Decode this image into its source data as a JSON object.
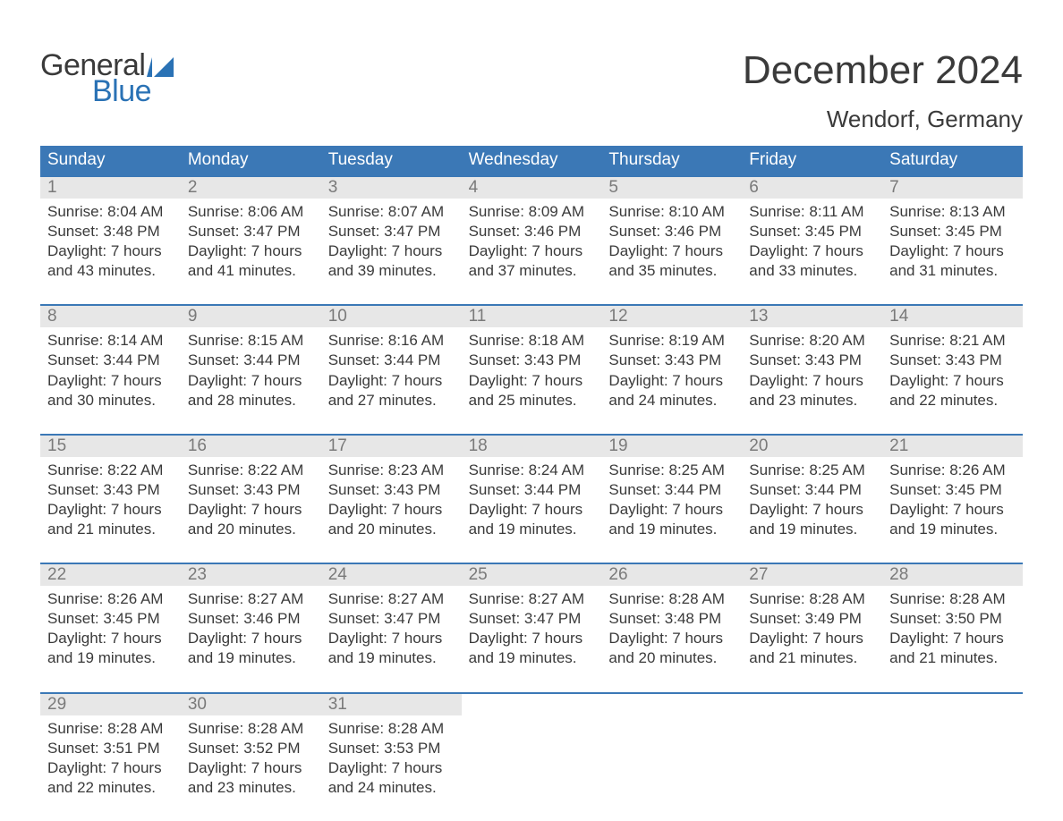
{
  "brand": {
    "word1": "General",
    "word2": "Blue",
    "accent_color": "#2a72b5"
  },
  "title": "December 2024",
  "location": "Wendorf, Germany",
  "colors": {
    "header_bg": "#3b78b6",
    "header_text": "#ffffff",
    "daynum_bg": "#e7e7e7",
    "daynum_text": "#7a7a7a",
    "body_text": "#3a3a3a",
    "week_border": "#3b78b6",
    "page_bg": "#ffffff"
  },
  "days_of_week": [
    "Sunday",
    "Monday",
    "Tuesday",
    "Wednesday",
    "Thursday",
    "Friday",
    "Saturday"
  ],
  "weeks": [
    [
      {
        "n": "1",
        "sunrise": "Sunrise: 8:04 AM",
        "sunset": "Sunset: 3:48 PM",
        "d1": "Daylight: 7 hours",
        "d2": "and 43 minutes."
      },
      {
        "n": "2",
        "sunrise": "Sunrise: 8:06 AM",
        "sunset": "Sunset: 3:47 PM",
        "d1": "Daylight: 7 hours",
        "d2": "and 41 minutes."
      },
      {
        "n": "3",
        "sunrise": "Sunrise: 8:07 AM",
        "sunset": "Sunset: 3:47 PM",
        "d1": "Daylight: 7 hours",
        "d2": "and 39 minutes."
      },
      {
        "n": "4",
        "sunrise": "Sunrise: 8:09 AM",
        "sunset": "Sunset: 3:46 PM",
        "d1": "Daylight: 7 hours",
        "d2": "and 37 minutes."
      },
      {
        "n": "5",
        "sunrise": "Sunrise: 8:10 AM",
        "sunset": "Sunset: 3:46 PM",
        "d1": "Daylight: 7 hours",
        "d2": "and 35 minutes."
      },
      {
        "n": "6",
        "sunrise": "Sunrise: 8:11 AM",
        "sunset": "Sunset: 3:45 PM",
        "d1": "Daylight: 7 hours",
        "d2": "and 33 minutes."
      },
      {
        "n": "7",
        "sunrise": "Sunrise: 8:13 AM",
        "sunset": "Sunset: 3:45 PM",
        "d1": "Daylight: 7 hours",
        "d2": "and 31 minutes."
      }
    ],
    [
      {
        "n": "8",
        "sunrise": "Sunrise: 8:14 AM",
        "sunset": "Sunset: 3:44 PM",
        "d1": "Daylight: 7 hours",
        "d2": "and 30 minutes."
      },
      {
        "n": "9",
        "sunrise": "Sunrise: 8:15 AM",
        "sunset": "Sunset: 3:44 PM",
        "d1": "Daylight: 7 hours",
        "d2": "and 28 minutes."
      },
      {
        "n": "10",
        "sunrise": "Sunrise: 8:16 AM",
        "sunset": "Sunset: 3:44 PM",
        "d1": "Daylight: 7 hours",
        "d2": "and 27 minutes."
      },
      {
        "n": "11",
        "sunrise": "Sunrise: 8:18 AM",
        "sunset": "Sunset: 3:43 PM",
        "d1": "Daylight: 7 hours",
        "d2": "and 25 minutes."
      },
      {
        "n": "12",
        "sunrise": "Sunrise: 8:19 AM",
        "sunset": "Sunset: 3:43 PM",
        "d1": "Daylight: 7 hours",
        "d2": "and 24 minutes."
      },
      {
        "n": "13",
        "sunrise": "Sunrise: 8:20 AM",
        "sunset": "Sunset: 3:43 PM",
        "d1": "Daylight: 7 hours",
        "d2": "and 23 minutes."
      },
      {
        "n": "14",
        "sunrise": "Sunrise: 8:21 AM",
        "sunset": "Sunset: 3:43 PM",
        "d1": "Daylight: 7 hours",
        "d2": "and 22 minutes."
      }
    ],
    [
      {
        "n": "15",
        "sunrise": "Sunrise: 8:22 AM",
        "sunset": "Sunset: 3:43 PM",
        "d1": "Daylight: 7 hours",
        "d2": "and 21 minutes."
      },
      {
        "n": "16",
        "sunrise": "Sunrise: 8:22 AM",
        "sunset": "Sunset: 3:43 PM",
        "d1": "Daylight: 7 hours",
        "d2": "and 20 minutes."
      },
      {
        "n": "17",
        "sunrise": "Sunrise: 8:23 AM",
        "sunset": "Sunset: 3:43 PM",
        "d1": "Daylight: 7 hours",
        "d2": "and 20 minutes."
      },
      {
        "n": "18",
        "sunrise": "Sunrise: 8:24 AM",
        "sunset": "Sunset: 3:44 PM",
        "d1": "Daylight: 7 hours",
        "d2": "and 19 minutes."
      },
      {
        "n": "19",
        "sunrise": "Sunrise: 8:25 AM",
        "sunset": "Sunset: 3:44 PM",
        "d1": "Daylight: 7 hours",
        "d2": "and 19 minutes."
      },
      {
        "n": "20",
        "sunrise": "Sunrise: 8:25 AM",
        "sunset": "Sunset: 3:44 PM",
        "d1": "Daylight: 7 hours",
        "d2": "and 19 minutes."
      },
      {
        "n": "21",
        "sunrise": "Sunrise: 8:26 AM",
        "sunset": "Sunset: 3:45 PM",
        "d1": "Daylight: 7 hours",
        "d2": "and 19 minutes."
      }
    ],
    [
      {
        "n": "22",
        "sunrise": "Sunrise: 8:26 AM",
        "sunset": "Sunset: 3:45 PM",
        "d1": "Daylight: 7 hours",
        "d2": "and 19 minutes."
      },
      {
        "n": "23",
        "sunrise": "Sunrise: 8:27 AM",
        "sunset": "Sunset: 3:46 PM",
        "d1": "Daylight: 7 hours",
        "d2": "and 19 minutes."
      },
      {
        "n": "24",
        "sunrise": "Sunrise: 8:27 AM",
        "sunset": "Sunset: 3:47 PM",
        "d1": "Daylight: 7 hours",
        "d2": "and 19 minutes."
      },
      {
        "n": "25",
        "sunrise": "Sunrise: 8:27 AM",
        "sunset": "Sunset: 3:47 PM",
        "d1": "Daylight: 7 hours",
        "d2": "and 19 minutes."
      },
      {
        "n": "26",
        "sunrise": "Sunrise: 8:28 AM",
        "sunset": "Sunset: 3:48 PM",
        "d1": "Daylight: 7 hours",
        "d2": "and 20 minutes."
      },
      {
        "n": "27",
        "sunrise": "Sunrise: 8:28 AM",
        "sunset": "Sunset: 3:49 PM",
        "d1": "Daylight: 7 hours",
        "d2": "and 21 minutes."
      },
      {
        "n": "28",
        "sunrise": "Sunrise: 8:28 AM",
        "sunset": "Sunset: 3:50 PM",
        "d1": "Daylight: 7 hours",
        "d2": "and 21 minutes."
      }
    ],
    [
      {
        "n": "29",
        "sunrise": "Sunrise: 8:28 AM",
        "sunset": "Sunset: 3:51 PM",
        "d1": "Daylight: 7 hours",
        "d2": "and 22 minutes."
      },
      {
        "n": "30",
        "sunrise": "Sunrise: 8:28 AM",
        "sunset": "Sunset: 3:52 PM",
        "d1": "Daylight: 7 hours",
        "d2": "and 23 minutes."
      },
      {
        "n": "31",
        "sunrise": "Sunrise: 8:28 AM",
        "sunset": "Sunset: 3:53 PM",
        "d1": "Daylight: 7 hours",
        "d2": "and 24 minutes."
      },
      null,
      null,
      null,
      null
    ]
  ]
}
